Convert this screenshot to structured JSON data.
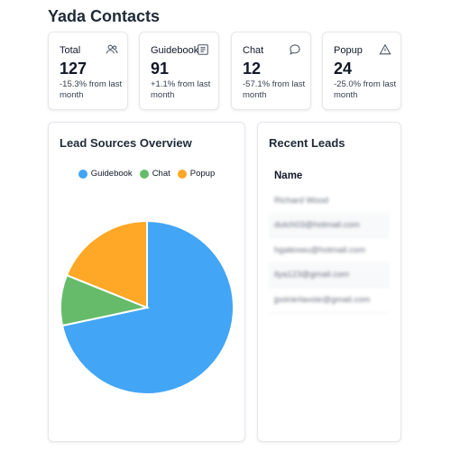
{
  "page": {
    "title": "Yada Contacts"
  },
  "stats": [
    {
      "label": "Total",
      "value": "127",
      "change": "-15.3% from last month",
      "icon": "users-icon"
    },
    {
      "label": "Guidebook",
      "value": "91",
      "change": "+1.1% from last month",
      "icon": "book-icon"
    },
    {
      "label": "Chat",
      "value": "12",
      "change": "-57.1% from last month",
      "icon": "chat-icon"
    },
    {
      "label": "Popup",
      "value": "24",
      "change": "-25.0% from last month",
      "icon": "alert-icon"
    }
  ],
  "lead_sources": {
    "title": "Lead Sources Overview",
    "legend": [
      {
        "label": "Guidebook",
        "color": "#42a5f5"
      },
      {
        "label": "Chat",
        "color": "#66bb6a"
      },
      {
        "label": "Popup",
        "color": "#ffa726"
      }
    ]
  },
  "chart_data": {
    "type": "pie",
    "title": "Lead Sources Overview",
    "categories": [
      "Guidebook",
      "Chat",
      "Popup"
    ],
    "values": [
      91,
      12,
      24
    ],
    "colors": [
      "#42a5f5",
      "#66bb6a",
      "#ffa726"
    ],
    "legend_position": "top"
  },
  "recent_leads": {
    "title": "Recent Leads",
    "column_header": "Name",
    "rows": [
      "Richard Wood",
      "dutch03@hotmail.com",
      "hgalexwu@hotmail.com",
      "ilya123@gmail.com",
      "jpoirierlavoie@gmail.com"
    ]
  }
}
